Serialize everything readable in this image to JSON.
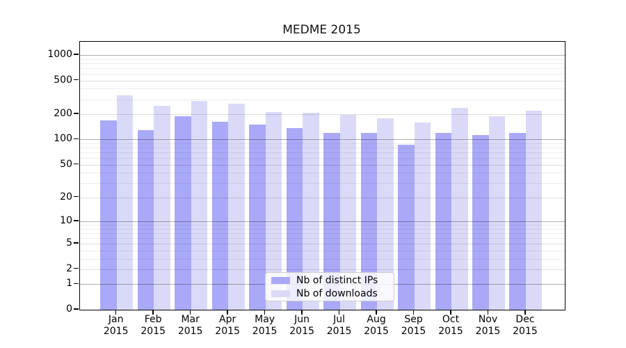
{
  "chart_data": {
    "type": "bar",
    "title": "MEDME 2015",
    "x_axis": {
      "categories": [
        "Jan 2015",
        "Feb 2015",
        "Mar 2015",
        "Apr 2015",
        "May 2015",
        "Jun 2015",
        "Jul 2015",
        "Aug 2015",
        "Sep 2015",
        "Oct 2015",
        "Nov 2015",
        "Dec 2015"
      ],
      "label_style": "two-line (month / year)"
    },
    "y_axis": {
      "scale": "symlog (position ~ log10(value+1))",
      "ticks": [
        0,
        1,
        2,
        5,
        10,
        20,
        50,
        100,
        200,
        500,
        1000
      ],
      "ylim": [
        0,
        1430
      ],
      "major_gridline_values": [
        1,
        10,
        100,
        1000
      ],
      "sub_gridline_values": [
        2,
        5,
        20,
        50,
        200,
        500
      ],
      "minor_gridline_values": [
        3,
        4,
        6,
        7,
        8,
        9,
        30,
        40,
        60,
        70,
        80,
        90,
        300,
        400,
        600,
        700,
        800,
        900
      ],
      "grid": "on, drawn over bars"
    },
    "series": [
      {
        "name": "Nb of distinct IPs",
        "color": "#a9a9f8",
        "values": [
          170,
          130,
          190,
          163,
          150,
          138,
          120,
          120,
          87,
          120,
          113,
          120
        ]
      },
      {
        "name": "Nb of downloads",
        "color": "#dadaf8",
        "values": [
          335,
          250,
          285,
          268,
          210,
          206,
          195,
          177,
          160,
          238,
          188,
          220
        ]
      }
    ],
    "legend_position": "lower center, inside plot"
  },
  "colors": {
    "axes_border": "#000000",
    "major_grid": "rgba(0,0,0,0.32)",
    "sub_grid": "rgba(0,0,0,0.13)",
    "minor_grid": "rgba(0,0,0,0.07)",
    "background": "#ffffff"
  }
}
